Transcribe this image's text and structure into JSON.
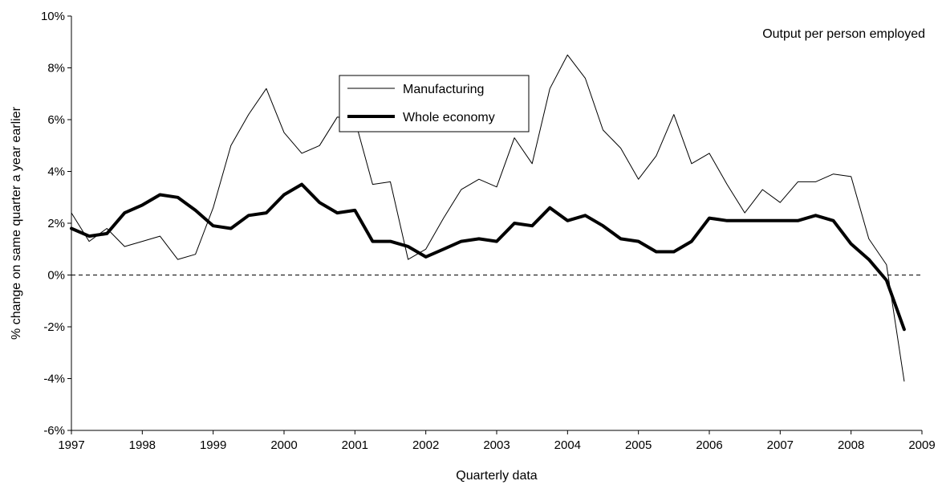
{
  "chart_data": {
    "type": "line",
    "title": "",
    "annotation": "Output per person employed",
    "xlabel": "Quarterly data",
    "ylabel": "% change on same quarter a year earlier",
    "xlim": [
      1997,
      2009
    ],
    "ylim": [
      -6,
      10
    ],
    "x_ticks": [
      "1997",
      "1998",
      "1999",
      "2000",
      "2001",
      "2002",
      "2003",
      "2004",
      "2005",
      "2006",
      "2007",
      "2008",
      "2009"
    ],
    "y_ticks": [
      "-6%",
      "-4%",
      "-2%",
      "0%",
      "2%",
      "4%",
      "6%",
      "8%",
      "10%"
    ],
    "reference_line": 0,
    "legend_position": "upper-center",
    "x": [
      1997.0,
      1997.25,
      1997.5,
      1997.75,
      1998.0,
      1998.25,
      1998.5,
      1998.75,
      1999.0,
      1999.25,
      1999.5,
      1999.75,
      2000.0,
      2000.25,
      2000.5,
      2000.75,
      2001.0,
      2001.25,
      2001.5,
      2001.75,
      2002.0,
      2002.25,
      2002.5,
      2002.75,
      2003.0,
      2003.25,
      2003.5,
      2003.75,
      2004.0,
      2004.25,
      2004.5,
      2004.75,
      2005.0,
      2005.25,
      2005.5,
      2005.75,
      2006.0,
      2006.25,
      2006.5,
      2006.75,
      2007.0,
      2007.25,
      2007.5,
      2007.75,
      2008.0,
      2008.25,
      2008.5,
      2008.75
    ],
    "series": [
      {
        "name": "Manufacturing",
        "color": "#000000",
        "values": [
          2.4,
          1.3,
          1.8,
          1.1,
          1.3,
          1.5,
          0.6,
          0.8,
          2.6,
          5.0,
          6.2,
          7.2,
          5.5,
          4.7,
          5.0,
          6.1,
          6.0,
          3.5,
          3.6,
          0.6,
          1.0,
          2.2,
          3.3,
          3.7,
          3.4,
          5.3,
          4.3,
          7.2,
          8.5,
          7.6,
          5.6,
          4.9,
          3.7,
          4.6,
          6.2,
          4.3,
          4.7,
          3.5,
          2.4,
          3.3,
          2.8,
          3.6,
          3.6,
          3.9,
          3.8,
          1.4,
          0.4,
          -4.1
        ]
      },
      {
        "name": "Whole economy",
        "color": "#000000",
        "values": [
          1.8,
          1.5,
          1.6,
          2.4,
          2.7,
          3.1,
          3.0,
          2.5,
          1.9,
          1.8,
          2.3,
          2.4,
          3.1,
          3.5,
          2.8,
          2.4,
          2.5,
          1.3,
          1.3,
          1.1,
          0.7,
          1.0,
          1.3,
          1.4,
          1.3,
          2.0,
          1.9,
          2.6,
          2.1,
          2.3,
          1.9,
          1.4,
          1.3,
          0.9,
          0.9,
          1.3,
          2.2,
          2.1,
          2.1,
          2.1,
          2.1,
          2.1,
          2.3,
          2.1,
          1.2,
          0.6,
          -0.2,
          -2.1
        ]
      }
    ]
  }
}
